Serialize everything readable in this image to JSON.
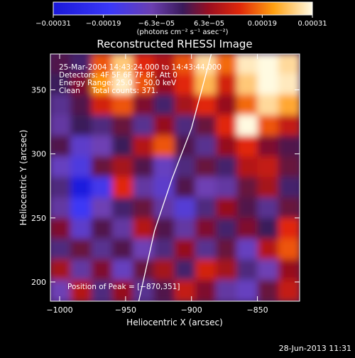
{
  "chart_data": {
    "type": "heatmap",
    "title": "Reconstructed RHESSI Image",
    "xlabel": "Heliocentric X (arcsec)",
    "ylabel": "Heliocentric Y (arcsec)",
    "xlim": [
      -1007,
      -818
    ],
    "ylim": [
      185,
      378
    ],
    "x_ticks": [
      {
        "value": -1000,
        "label": "−1000"
      },
      {
        "value": -950,
        "label": "−950"
      },
      {
        "value": -900,
        "label": "−900"
      },
      {
        "value": -850,
        "label": "−850"
      }
    ],
    "y_ticks": [
      {
        "value": 200,
        "label": "200"
      },
      {
        "value": 250,
        "label": "250"
      },
      {
        "value": 300,
        "label": "300"
      },
      {
        "value": 350,
        "label": "350"
      }
    ],
    "colorbar": {
      "range": [
        -0.00031,
        0.00031
      ],
      "tick_values": [
        -0.00031,
        -0.00019,
        -6.3e-05,
        6.3e-05,
        0.00019,
        0.00031
      ],
      "tick_labels": [
        "−0.00031",
        "−0.00019",
        "−6.3e−05",
        "6.3e−05",
        "0.00019",
        "0.00031"
      ],
      "units": "(photons cm⁻² s⁻¹ asec⁻²)"
    },
    "info_lines": [
      "25‑Mar‑2004 14:43:24.000 to 14:43:44.000",
      "Detectors: 4F 5F 6F 7F 8F, Att 0",
      "Energy Range: 25.0 − 50.0 keV",
      "Clean     Total counts: 371."
    ],
    "peak_label": "Position of Peak = [−870,351]",
    "peak": {
      "x": -870,
      "y": 351
    },
    "limb_line": [
      [
        -940,
        185
      ],
      [
        -928,
        240
      ],
      [
        -915,
        280
      ],
      [
        -900,
        320
      ],
      [
        -885,
        378
      ]
    ],
    "field_grid": {
      "cols": 12,
      "rows": 12,
      "values": [
        [
          0.05,
          -0.05,
          0.55,
          0.85,
          0.45,
          0.3,
          0.55,
          0.9,
          0.6,
          0.95,
          1.0,
          0.9
        ],
        [
          0.0,
          0.15,
          0.7,
          0.95,
          0.55,
          0.2,
          0.45,
          0.8,
          0.4,
          0.85,
          1.0,
          0.95
        ],
        [
          -0.15,
          0.05,
          0.4,
          0.55,
          0.15,
          -0.05,
          0.25,
          0.45,
          0.2,
          0.6,
          0.9,
          0.75
        ],
        [
          -0.2,
          0.0,
          -0.1,
          0.1,
          -0.15,
          0.2,
          -0.1,
          0.1,
          0.45,
          1.0,
          0.55,
          0.35
        ],
        [
          0.05,
          -0.35,
          -0.25,
          0.0,
          0.3,
          0.55,
          0.05,
          -0.15,
          0.2,
          0.45,
          0.15,
          0.05
        ],
        [
          -0.3,
          -0.45,
          0.1,
          0.25,
          0.05,
          -0.3,
          -0.1,
          0.1,
          -0.05,
          0.3,
          0.35,
          0.1
        ],
        [
          -0.1,
          -0.9,
          -0.5,
          0.45,
          -0.2,
          -0.35,
          0.05,
          -0.25,
          -0.2,
          0.1,
          0.25,
          -0.05
        ],
        [
          -0.2,
          -0.55,
          -0.25,
          -0.05,
          0.1,
          -0.2,
          -0.4,
          -0.1,
          0.2,
          0.05,
          -0.15,
          0.1
        ],
        [
          0.15,
          -0.35,
          0.05,
          -0.2,
          0.3,
          0.05,
          -0.2,
          0.15,
          -0.05,
          0.15,
          0.0,
          0.45
        ],
        [
          -0.1,
          0.1,
          -0.15,
          0.05,
          -0.25,
          -0.1,
          0.2,
          -0.15,
          0.1,
          -0.3,
          0.3,
          0.55
        ],
        [
          0.25,
          -0.2,
          0.15,
          -0.3,
          0.1,
          0.25,
          -0.05,
          0.4,
          0.25,
          -0.1,
          -0.25,
          0.2
        ],
        [
          -0.25,
          0.3,
          -0.1,
          0.2,
          -0.15,
          0.05,
          0.35,
          0.15,
          -0.2,
          -0.3,
          0.1,
          0.35
        ]
      ]
    }
  },
  "footer_date": "28‑Jun‑2013 11:31"
}
